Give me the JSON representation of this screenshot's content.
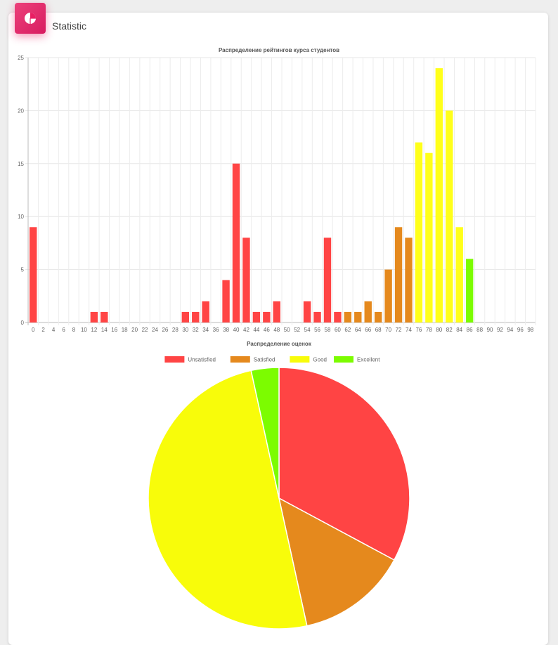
{
  "header": {
    "title": "Statistic",
    "icon": "pie-chart-icon"
  },
  "chart_data": [
    {
      "type": "bar",
      "title": "Распределение рейтингов курса студентов",
      "xlabel": "",
      "ylabel": "",
      "ylim": [
        0,
        25
      ],
      "yticks": [
        0,
        5,
        10,
        15,
        20,
        25
      ],
      "grid": true,
      "categories": [
        "0",
        "2",
        "4",
        "6",
        "8",
        "10",
        "12",
        "14",
        "16",
        "18",
        "20",
        "22",
        "24",
        "26",
        "28",
        "30",
        "32",
        "34",
        "36",
        "38",
        "40",
        "42",
        "44",
        "46",
        "48",
        "50",
        "52",
        "54",
        "56",
        "58",
        "60",
        "62",
        "64",
        "66",
        "68",
        "70",
        "72",
        "74",
        "76",
        "78",
        "80",
        "82",
        "84",
        "86",
        "88",
        "90",
        "92",
        "94",
        "96",
        "98"
      ],
      "values": [
        9,
        0,
        0,
        0,
        0,
        0,
        1,
        1,
        0,
        0,
        0,
        0,
        0,
        0,
        0,
        1,
        1,
        2,
        0,
        4,
        15,
        8,
        1,
        1,
        2,
        0,
        0,
        2,
        1,
        8,
        1,
        1,
        1,
        2,
        1,
        5,
        9,
        8,
        17,
        16,
        24,
        20,
        9,
        6,
        0,
        0,
        0,
        0,
        0,
        0
      ],
      "bar_colors": [
        "#ff4444",
        "#ff4444",
        "#ff4444",
        "#ff4444",
        "#ff4444",
        "#ff4444",
        "#ff4444",
        "#ff4444",
        "#ff4444",
        "#ff4444",
        "#ff4444",
        "#ff4444",
        "#ff4444",
        "#ff4444",
        "#ff4444",
        "#ff4444",
        "#ff4444",
        "#ff4444",
        "#ff4444",
        "#ff4444",
        "#ff4444",
        "#ff4444",
        "#ff4444",
        "#ff4444",
        "#ff4444",
        "#ff4444",
        "#ff4444",
        "#ff4444",
        "#ff4444",
        "#ff4444",
        "#ff4444",
        "#e5891d",
        "#e5891d",
        "#e5891d",
        "#e5891d",
        "#e5891d",
        "#e5891d",
        "#e5891d",
        "#ffff1a",
        "#ffff1a",
        "#ffff1a",
        "#ffff1a",
        "#ffff1a",
        "#7cfc00",
        "#7cfc00",
        "#7cfc00",
        "#7cfc00",
        "#7cfc00",
        "#7cfc00",
        "#7cfc00"
      ]
    },
    {
      "type": "pie",
      "title": "Распределение оценок",
      "legend_position": "top",
      "labels": [
        "Unsatisfied",
        "Satisfied",
        "Good",
        "Excellent"
      ],
      "values": [
        67,
        28,
        102,
        7
      ],
      "colors": [
        "#ff4444",
        "#e5891d",
        "#f8fc0a",
        "#7cfc00"
      ]
    }
  ]
}
